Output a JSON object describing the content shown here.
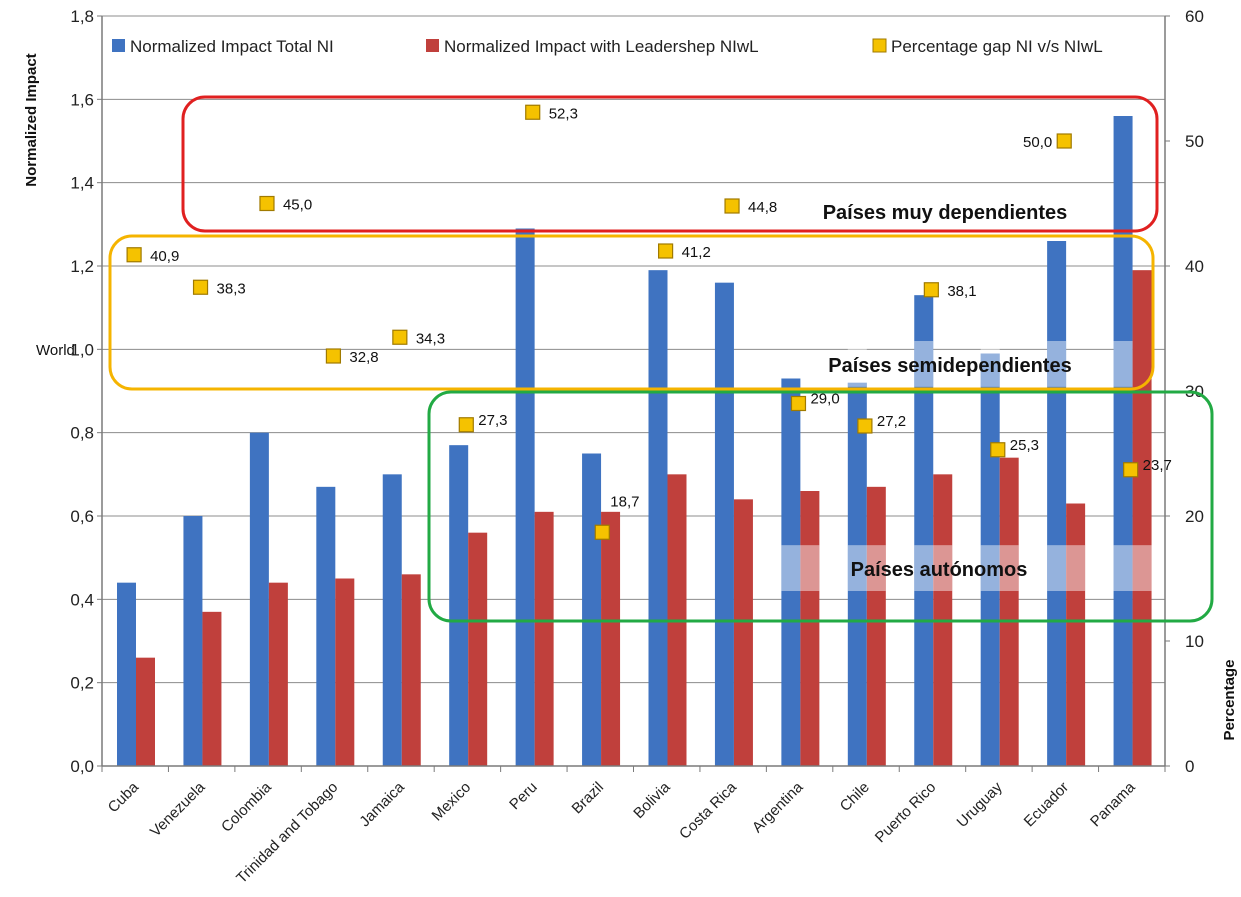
{
  "chart_data": {
    "type": "bar",
    "categories": [
      "Cuba",
      "Venezuela",
      "Colombia",
      "Trinidad and Tobago",
      "Jamaica",
      "Mexico",
      "Peru",
      "Brazil",
      "Bolivia",
      "Costa Rica",
      "Argentina",
      "Chile",
      "Puerto Rico",
      "Uruguay",
      "Ecuador",
      "Panama"
    ],
    "series": [
      {
        "name": "Normalized Impact Total NI",
        "type": "bar",
        "axis": "left",
        "color": "#3f73c1",
        "values": [
          0.44,
          0.6,
          0.8,
          0.67,
          0.7,
          0.77,
          1.29,
          0.75,
          1.19,
          1.16,
          0.93,
          0.92,
          1.13,
          0.99,
          1.26,
          1.56
        ]
      },
      {
        "name": "Normalized Impact with Leadershep NIwL",
        "type": "bar",
        "axis": "left",
        "color": "#c0403c",
        "values": [
          0.26,
          0.37,
          0.44,
          0.45,
          0.46,
          0.56,
          0.61,
          0.61,
          0.7,
          0.64,
          0.66,
          0.67,
          0.7,
          0.74,
          0.63,
          1.19
        ]
      },
      {
        "name": "Percentage gap  NI v/s NIwL",
        "type": "marker",
        "axis": "right",
        "color": "#f5c200",
        "values": [
          40.9,
          38.3,
          45.0,
          32.8,
          34.3,
          27.3,
          52.3,
          18.7,
          41.2,
          44.8,
          29.0,
          27.2,
          38.1,
          25.3,
          50.0,
          23.7
        ],
        "labels": [
          "40,9",
          "38,3",
          "45,0",
          "32,8",
          "34,3",
          "27,3",
          "52,3",
          "18,7",
          "41,2",
          "44,8",
          "29,0",
          "27,2",
          "38,1",
          "25,3",
          "50,0",
          "23,7"
        ]
      }
    ],
    "ylabel": "Normalized Impact",
    "y2label": "Percentage",
    "ylim": [
      0,
      1.8
    ],
    "y2lim": [
      0,
      60
    ],
    "yticks": [
      "0,0",
      "0,2",
      "0,4",
      "0,6",
      "0,8",
      "1,0",
      "1,2",
      "1,4",
      "1,6",
      "1,8"
    ],
    "y2ticks": [
      "0",
      "10",
      "20",
      "30",
      "40",
      "50",
      "60"
    ],
    "grid": true,
    "legend_position": "top",
    "reference_line": {
      "label": "World",
      "value": 1.0
    },
    "regions": [
      {
        "label": "Países  muy dependientes",
        "color": "#e02020"
      },
      {
        "label": "Países  semidependientes",
        "color": "#f5b400"
      },
      {
        "label": "Países  autónomos",
        "color": "#22aa44"
      }
    ]
  }
}
